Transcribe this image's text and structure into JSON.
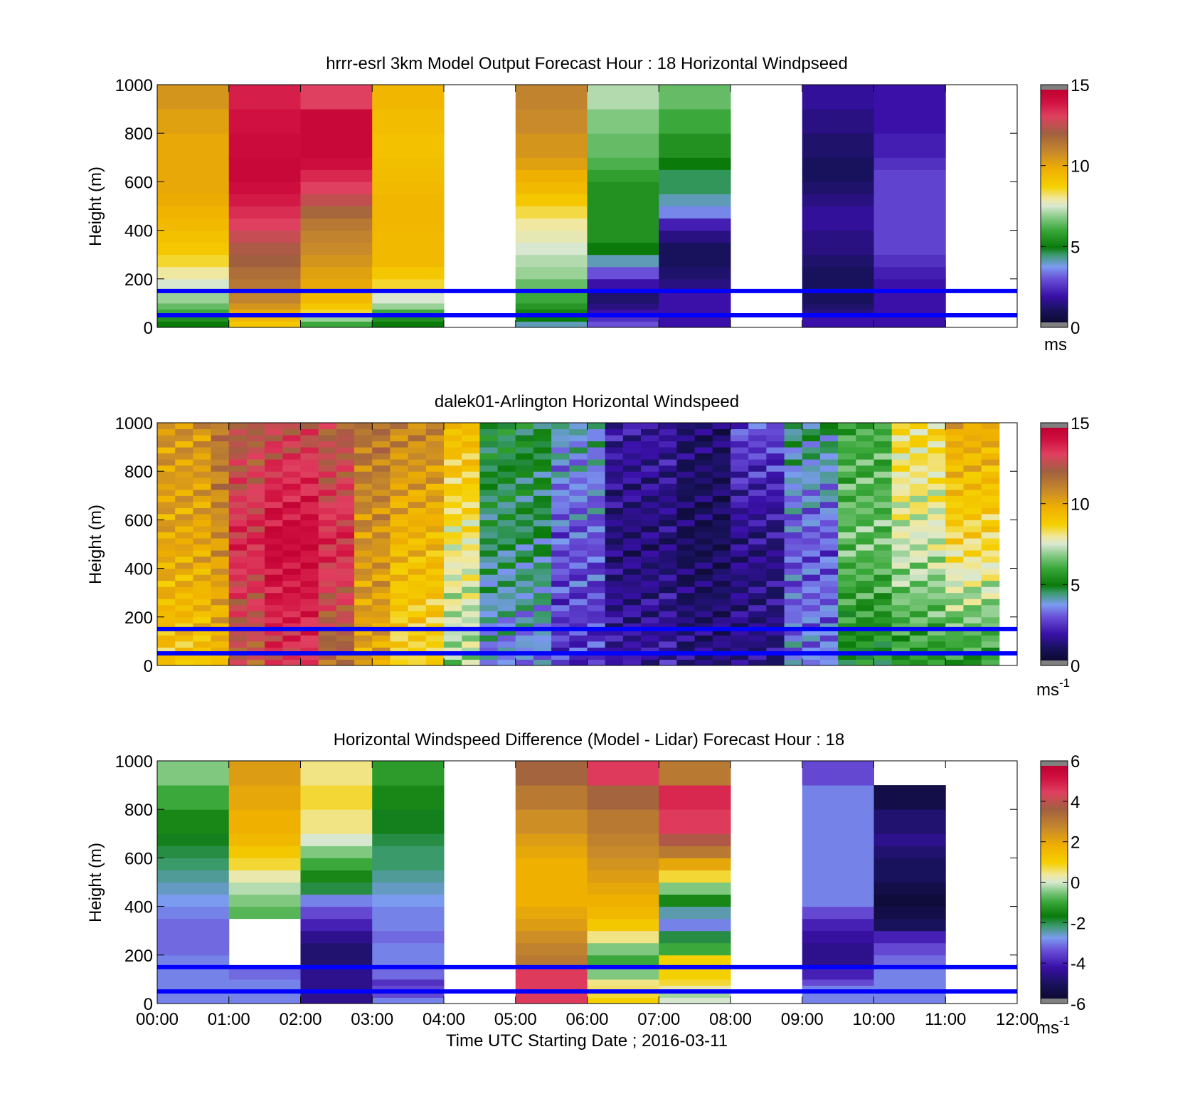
{
  "chart_data": [
    {
      "type": "heatmap",
      "title": "hrrr-esrl 3km Model Output   Forecast Hour : 18 Horizontal Windpseed",
      "ylabel": "Height (m)",
      "xlabel": "",
      "xlim": [
        0,
        12
      ],
      "ylim": [
        0,
        1000
      ],
      "yticks": [
        "0",
        "200",
        "400",
        "600",
        "800",
        "1000"
      ],
      "xticks": [
        "",
        "",
        "",
        "",
        "",
        "",
        "",
        "",
        "",
        "",
        "",
        "",
        ""
      ],
      "colorbar": {
        "min": 0,
        "max": 15,
        "ticks": [
          "0",
          "5",
          "10",
          "15"
        ],
        "units": "ms",
        "units_sup": "",
        "colormap": "speed"
      },
      "height_bins_m": [
        0,
        25,
        50,
        75,
        100,
        150,
        200,
        250,
        300,
        350,
        400,
        450,
        500,
        550,
        600,
        650,
        700,
        800,
        900,
        1000
      ],
      "columns": [
        {
          "start_hour": 0,
          "end_hour": 1,
          "values": [
            5,
            5.5,
            6,
            6.5,
            7,
            7.5,
            8,
            8.5,
            9,
            9.2,
            9.5,
            9.7,
            9.9,
            10,
            10,
            10,
            10,
            10.2,
            10.5
          ]
        },
        {
          "start_hour": 1,
          "end_hour": 2,
          "values": [
            9,
            9.5,
            10,
            10.5,
            11,
            11.3,
            11.6,
            12,
            12.2,
            12.6,
            13,
            13.4,
            13.8,
            14.2,
            14.5,
            14.5,
            14.3,
            14,
            13.7
          ]
        },
        {
          "start_hour": 2,
          "end_hour": 3,
          "values": [
            6,
            7,
            8.5,
            9,
            9.5,
            10,
            10.2,
            10.5,
            10.8,
            11,
            11.3,
            11.8,
            12.5,
            13,
            13.5,
            14.2,
            14.5,
            14.5,
            13
          ]
        },
        {
          "start_hour": 3,
          "end_hour": 4,
          "values": [
            5,
            5.5,
            6,
            7,
            7.5,
            8.5,
            9,
            9.5,
            9.5,
            9.5,
            9.6,
            9.6,
            9.6,
            9.5,
            9.4,
            9.3,
            9.2,
            9.4,
            9.6
          ]
        },
        {
          "start_hour": 4,
          "end_hour": 5,
          "values": []
        },
        {
          "start_hour": 5,
          "end_hour": 6,
          "values": [
            4,
            5,
            5.2,
            5.6,
            6,
            6.5,
            7,
            7.2,
            7.5,
            7.8,
            8,
            8.4,
            9,
            9.5,
            9.8,
            10.2,
            10.5,
            10.8,
            11
          ]
        },
        {
          "start_hour": 6,
          "end_hour": 7,
          "values": [
            3,
            2.5,
            2,
            1.5,
            1.2,
            2,
            3,
            4,
            5,
            5.5,
            5.5,
            5.5,
            5.5,
            5.5,
            5.8,
            6.2,
            6.5,
            6.8,
            7.2
          ]
        },
        {
          "start_hour": 7,
          "end_hour": 8,
          "values": [
            2,
            2,
            2,
            2,
            2,
            1.5,
            1.2,
            1,
            1,
            1.5,
            2.2,
            3.5,
            4,
            4.5,
            4.5,
            5,
            5.5,
            6,
            6.5
          ]
        },
        {
          "start_hour": 8,
          "end_hour": 9,
          "values": []
        },
        {
          "start_hour": 9,
          "end_hour": 10,
          "values": [
            2,
            2,
            1.5,
            1.2,
            1,
            1,
            1,
            1.2,
            1.5,
            1.5,
            1.8,
            1.8,
            1.5,
            1.2,
            1,
            1,
            1.2,
            1.5,
            1.8
          ]
        },
        {
          "start_hour": 10,
          "end_hour": 11,
          "values": [
            2,
            2,
            2,
            2,
            2,
            2,
            2.2,
            2.5,
            2.8,
            2.8,
            2.8,
            2.8,
            2.8,
            2.8,
            2.8,
            2.5,
            2.2,
            2,
            2
          ]
        },
        {
          "start_hour": 11,
          "end_hour": 12,
          "values": []
        }
      ],
      "reference_lines_m": [
        50,
        150
      ],
      "reference_line_color": "#0000ff"
    },
    {
      "type": "heatmap",
      "title": "dalek01-Arlington  Horizontal Windspeed",
      "ylabel": "Height (m)",
      "xlabel": "",
      "xlim": [
        0,
        12
      ],
      "ylim": [
        0,
        1000
      ],
      "yticks": [
        "0",
        "200",
        "400",
        "600",
        "800",
        "1000"
      ],
      "xticks": [
        "",
        "",
        "",
        "",
        "",
        "",
        "",
        "",
        "",
        "",
        "",
        "",
        ""
      ],
      "colorbar": {
        "min": 0,
        "max": 15,
        "ticks": [
          "0",
          "5",
          "10",
          "15"
        ],
        "units": "ms",
        "units_sup": "-1",
        "colormap": "speed"
      },
      "time_step_hours": 0.25,
      "column_profiles": [
        {
          "start_hour": 0,
          "end_hour": 0.75,
          "top": 10.5,
          "mid": 10,
          "bottom": 9
        },
        {
          "start_hour": 0.75,
          "end_hour": 1,
          "top": 11.5,
          "mid": 10.5,
          "bottom": 9.5
        },
        {
          "start_hour": 1,
          "end_hour": 1.5,
          "top": 12,
          "mid": 13.5,
          "bottom": 12
        },
        {
          "start_hour": 1.5,
          "end_hour": 2.25,
          "top": 12.5,
          "mid": 14.5,
          "bottom": 13
        },
        {
          "start_hour": 2.25,
          "end_hour": 2.75,
          "top": 12,
          "mid": 13.5,
          "bottom": 11.5
        },
        {
          "start_hour": 2.75,
          "end_hour": 3.25,
          "top": 11.5,
          "mid": 10.5,
          "bottom": 10
        },
        {
          "start_hour": 3.25,
          "end_hour": 4,
          "top": 11,
          "mid": 9.5,
          "bottom": 8.5
        },
        {
          "start_hour": 4,
          "end_hour": 4.5,
          "top": 9.5,
          "mid": 8,
          "bottom": 7
        },
        {
          "start_hour": 4.5,
          "end_hour": 5.5,
          "top": 5,
          "mid": 4.5,
          "bottom": 3.5
        },
        {
          "start_hour": 5.5,
          "end_hour": 6.25,
          "top": 4,
          "mid": 3,
          "bottom": 2.5
        },
        {
          "start_hour": 6.25,
          "end_hour": 7.25,
          "top": 2,
          "mid": 1.3,
          "bottom": 2
        },
        {
          "start_hour": 7.25,
          "end_hour": 8,
          "top": 1.2,
          "mid": 0.8,
          "bottom": 1.5
        },
        {
          "start_hour": 8,
          "end_hour": 8.75,
          "top": 3,
          "mid": 1.5,
          "bottom": 1.5
        },
        {
          "start_hour": 8.75,
          "end_hour": 9.5,
          "top": 4.5,
          "mid": 3,
          "bottom": 3.5
        },
        {
          "start_hour": 9.5,
          "end_hour": 10.25,
          "top": 6,
          "mid": 6.5,
          "bottom": 5
        },
        {
          "start_hour": 10.25,
          "end_hour": 11,
          "top": 8.5,
          "mid": 7.5,
          "bottom": 5.5
        },
        {
          "start_hour": 11,
          "end_hour": 11.75,
          "top": 10,
          "mid": 8.5,
          "bottom": 5.5
        }
      ],
      "reference_lines_m": [
        50,
        150
      ],
      "reference_line_color": "#0000ff"
    },
    {
      "type": "heatmap",
      "title": "Horizontal Windspeed Difference (Model - Lidar) Forecast Hour : 18",
      "ylabel": "Height (m)",
      "xlabel": "Time UTC  Starting Date ; 2016-03-11",
      "xlim": [
        0,
        12
      ],
      "ylim": [
        0,
        1000
      ],
      "yticks": [
        "0",
        "200",
        "400",
        "600",
        "800",
        "1000"
      ],
      "xticks": [
        "00:00",
        "01:00",
        "02:00",
        "03:00",
        "04:00",
        "05:00",
        "06:00",
        "07:00",
        "08:00",
        "09:00",
        "10:00",
        "11:00",
        "12:00"
      ],
      "colorbar": {
        "min": -6,
        "max": 6,
        "ticks": [
          "-6",
          "-4",
          "-2",
          "0",
          "2",
          "4",
          "6"
        ],
        "units": "ms",
        "units_sup": "-1",
        "colormap": "diff"
      },
      "height_bins_m": [
        0,
        25,
        50,
        75,
        100,
        150,
        200,
        250,
        300,
        350,
        400,
        450,
        500,
        550,
        600,
        650,
        700,
        800,
        900,
        1000
      ],
      "columns": [
        {
          "start_hour": 0,
          "end_hour": 1,
          "values": [
            -3,
            -3,
            -3,
            -3,
            -3,
            -3,
            -3.2,
            -3.2,
            -3.2,
            -3,
            -2.8,
            -2.6,
            -2.4,
            -2.2,
            -2,
            -1.8,
            -1.5,
            -1,
            -0.5
          ]
        },
        {
          "start_hour": 1,
          "end_hour": 2,
          "values": [
            -3,
            -3,
            -3,
            -3,
            -3.2,
            null,
            null,
            null,
            null,
            -0.8,
            -0.5,
            -0.2,
            0.3,
            0.8,
            1.2,
            1.6,
            1.8,
            2,
            2.2
          ]
        },
        {
          "start_hour": 2,
          "end_hour": 3,
          "values": [
            -4.5,
            -4.5,
            -4.5,
            -4.5,
            -4.5,
            -4.8,
            -4.8,
            -4.5,
            -4,
            -3.5,
            -3,
            -2,
            -1.5,
            -1,
            -0.5,
            0,
            0.5,
            0.8,
            0.5
          ]
        },
        {
          "start_hour": 3,
          "end_hour": 4,
          "values": [
            -3,
            -3.5,
            -3.5,
            -3.8,
            -3.2,
            -3,
            -3,
            -3.2,
            -3,
            -3,
            -2.8,
            -2.6,
            -2.4,
            -2.2,
            -2.2,
            -2,
            -1.8,
            -1.5,
            -1.2
          ]
        },
        {
          "start_hour": 4,
          "end_hour": 5,
          "values": []
        },
        {
          "start_hour": 5,
          "end_hour": 6,
          "values": [
            4.5,
            4.5,
            4.5,
            4.5,
            4.5,
            3,
            2.8,
            2.5,
            2.2,
            2,
            1.8,
            1.8,
            1.8,
            1.8,
            2,
            2.2,
            2.5,
            3,
            3.5
          ]
        },
        {
          "start_hour": 6,
          "end_hour": 7,
          "values": [
            1,
            0.8,
            0.6,
            0.5,
            -0.5,
            -1,
            -0.5,
            0.5,
            1.2,
            1.6,
            1.8,
            2,
            2.2,
            2.4,
            2.6,
            2.8,
            3,
            3.5,
            4.5
          ]
        },
        {
          "start_hour": 7,
          "end_hour": 8,
          "values": [
            0,
            -0.3,
            0.3,
            0.8,
            1,
            1,
            -1,
            -2,
            -3,
            -2.5,
            -1.5,
            -0.5,
            0.8,
            2,
            3,
            3.8,
            4.5,
            4.8,
            3
          ]
        },
        {
          "start_hour": 8,
          "end_hour": 9,
          "values": []
        },
        {
          "start_hour": 9,
          "end_hour": 10,
          "values": [
            -3,
            -3,
            -3,
            -3.5,
            -4,
            -4.5,
            -4.5,
            -4.3,
            -4,
            -3.5,
            -3,
            -3,
            -3,
            -3,
            -3,
            -3,
            -3,
            -3,
            -3.5
          ]
        },
        {
          "start_hour": 10,
          "end_hour": 11,
          "values": [
            -3,
            -3,
            -3,
            -3,
            -3,
            -3.2,
            -3.5,
            -4,
            -5,
            -5.5,
            -5.8,
            -5.5,
            -5,
            -5,
            -4.8,
            -4.5,
            -4.8,
            -5.5,
            null
          ]
        },
        {
          "start_hour": 11,
          "end_hour": 12,
          "values": []
        }
      ],
      "reference_lines_m": [
        50,
        150
      ],
      "reference_line_color": "#0000ff"
    }
  ]
}
